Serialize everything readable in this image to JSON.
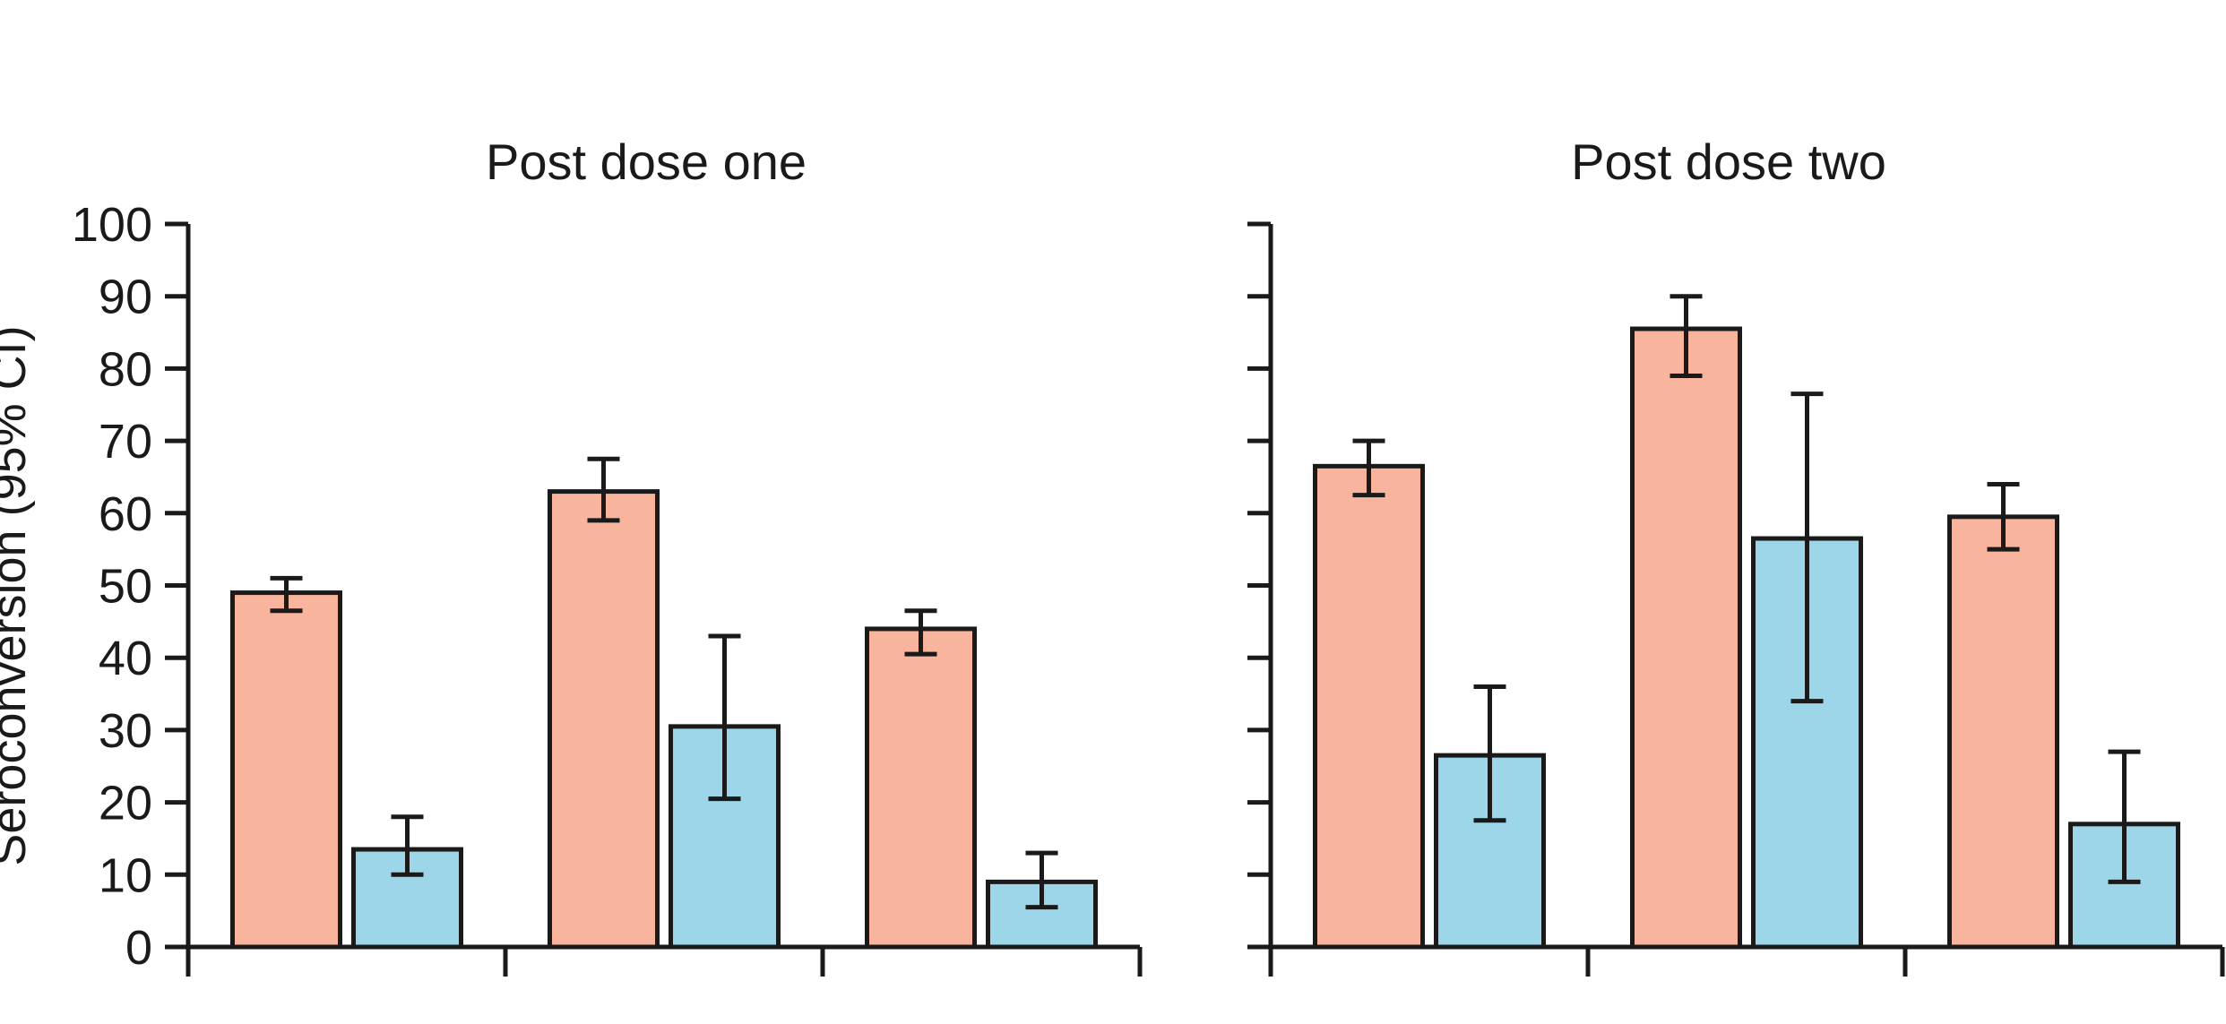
{
  "chart_data": {
    "type": "bar",
    "ylabel": "Seroconversion (95% CI)",
    "ylim": [
      0,
      100
    ],
    "yticks": [
      0,
      10,
      20,
      30,
      40,
      50,
      60,
      70,
      80,
      90,
      100
    ],
    "grid": false,
    "colors": {
      "series_1": "#f8b49c",
      "series_2": "#9dd6e8",
      "stroke": "#1a1a1a"
    },
    "panels": [
      {
        "title": "Post dose one",
        "groups": 3,
        "series": [
          {
            "values": [
              49,
              63,
              44
            ],
            "ci_low": [
              46.5,
              59,
              40.5
            ],
            "ci_high": [
              51,
              67.5,
              46.5
            ]
          },
          {
            "values": [
              13.5,
              30.5,
              9
            ],
            "ci_low": [
              10,
              20.5,
              5.5
            ],
            "ci_high": [
              18,
              43,
              13
            ]
          }
        ]
      },
      {
        "title": "Post dose two",
        "groups": 3,
        "series": [
          {
            "values": [
              66.5,
              85.5,
              59.5
            ],
            "ci_low": [
              62.5,
              79,
              55
            ],
            "ci_high": [
              70,
              90,
              64
            ]
          },
          {
            "values": [
              26.5,
              56.5,
              17
            ],
            "ci_low": [
              17.5,
              34,
              9
            ],
            "ci_high": [
              36,
              76.5,
              27
            ]
          }
        ]
      }
    ]
  }
}
